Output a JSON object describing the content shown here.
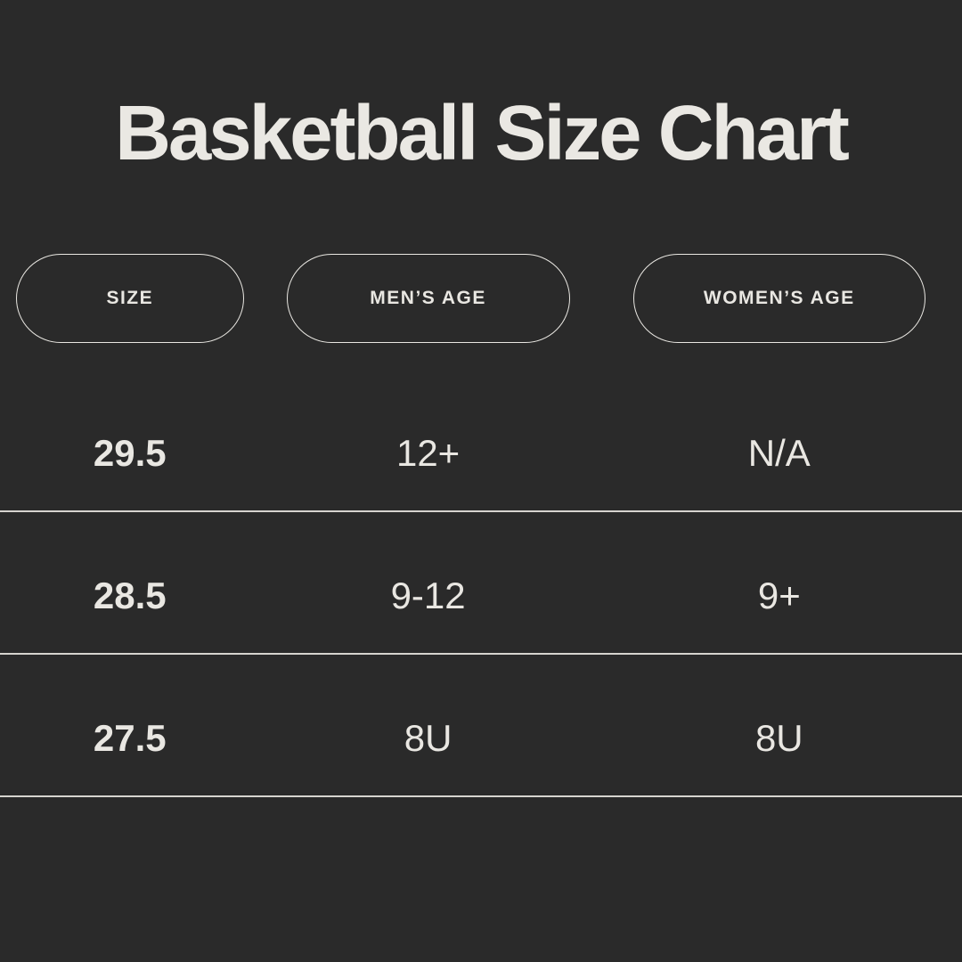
{
  "page": {
    "title": "Basketball Size Chart"
  },
  "colors": {
    "background": "#2a2a2a",
    "text": "#e9e7e2",
    "title": "#eae8e3",
    "divider": "#d6d4cf",
    "pill_border": "#e9e7e2"
  },
  "table": {
    "headers": [
      "SIZE",
      "MEN’S AGE",
      "WOMEN’S AGE"
    ],
    "rows": [
      {
        "size": "29.5",
        "mens_age": "12+",
        "womens_age": "N/A"
      },
      {
        "size": "28.5",
        "mens_age": "9-12",
        "womens_age": "9+"
      },
      {
        "size": "27.5",
        "mens_age": "8U",
        "womens_age": "8U"
      }
    ]
  },
  "chart_data": {
    "type": "table",
    "title": "Basketball Size Chart",
    "columns": [
      "SIZE",
      "MEN’S AGE",
      "WOMEN’S AGE"
    ],
    "rows": [
      [
        "29.5",
        "12+",
        "N/A"
      ],
      [
        "28.5",
        "9-12",
        "9+"
      ],
      [
        "27.5",
        "8U",
        "8U"
      ]
    ]
  }
}
